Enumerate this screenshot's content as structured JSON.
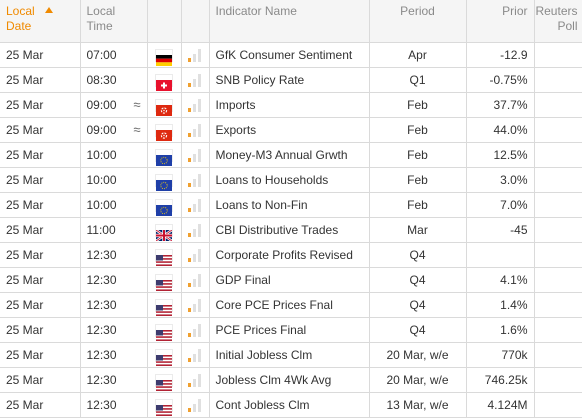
{
  "columns": {
    "date": [
      "Local",
      "Date"
    ],
    "time": [
      "Local",
      "Time"
    ],
    "name": "Indicator Name",
    "period": "Period",
    "prior": "Prior",
    "poll": [
      "Reuters",
      "Poll"
    ]
  },
  "colors": {
    "sort_accent": "#f08a00",
    "importance_on": "#f0a030",
    "importance_off": "#e0e0e0"
  },
  "rows": [
    {
      "date": "25 Mar",
      "time": "07:00",
      "tilde": "",
      "flag": "germany-flag",
      "importance": 1,
      "name": "GfK Consumer Sentiment",
      "period": "Apr",
      "prior": "-12.9",
      "poll": ""
    },
    {
      "date": "25 Mar",
      "time": "08:30",
      "tilde": "",
      "flag": "switzerland-flag",
      "importance": 1,
      "name": "SNB Policy Rate",
      "period": "Q1",
      "prior": "-0.75%",
      "poll": ""
    },
    {
      "date": "25 Mar",
      "time": "09:00",
      "tilde": "≈",
      "flag": "hong-kong-flag",
      "importance": 1,
      "name": "Imports",
      "period": "Feb",
      "prior": "37.7%",
      "poll": ""
    },
    {
      "date": "25 Mar",
      "time": "09:00",
      "tilde": "≈",
      "flag": "hong-kong-flag",
      "importance": 1,
      "name": "Exports",
      "period": "Feb",
      "prior": "44.0%",
      "poll": ""
    },
    {
      "date": "25 Mar",
      "time": "10:00",
      "tilde": "",
      "flag": "eu-flag",
      "importance": 1,
      "name": "Money-M3 Annual Grwth",
      "period": "Feb",
      "prior": "12.5%",
      "poll": ""
    },
    {
      "date": "25 Mar",
      "time": "10:00",
      "tilde": "",
      "flag": "eu-flag",
      "importance": 1,
      "name": "Loans to Households",
      "period": "Feb",
      "prior": "3.0%",
      "poll": ""
    },
    {
      "date": "25 Mar",
      "time": "10:00",
      "tilde": "",
      "flag": "eu-flag",
      "importance": 1,
      "name": "Loans to Non-Fin",
      "period": "Feb",
      "prior": "7.0%",
      "poll": ""
    },
    {
      "date": "25 Mar",
      "time": "11:00",
      "tilde": "",
      "flag": "uk-flag",
      "importance": 1,
      "name": "CBI Distributive Trades",
      "period": "Mar",
      "prior": "-45",
      "poll": ""
    },
    {
      "date": "25 Mar",
      "time": "12:30",
      "tilde": "",
      "flag": "us-flag",
      "importance": 1,
      "name": "Corporate Profits Revised",
      "period": "Q4",
      "prior": "",
      "poll": ""
    },
    {
      "date": "25 Mar",
      "time": "12:30",
      "tilde": "",
      "flag": "us-flag",
      "importance": 1,
      "name": "GDP Final",
      "period": "Q4",
      "prior": "4.1%",
      "poll": ""
    },
    {
      "date": "25 Mar",
      "time": "12:30",
      "tilde": "",
      "flag": "us-flag",
      "importance": 1,
      "name": "Core PCE Prices Fnal",
      "period": "Q4",
      "prior": "1.4%",
      "poll": ""
    },
    {
      "date": "25 Mar",
      "time": "12:30",
      "tilde": "",
      "flag": "us-flag",
      "importance": 1,
      "name": "PCE Prices Final",
      "period": "Q4",
      "prior": "1.6%",
      "poll": ""
    },
    {
      "date": "25 Mar",
      "time": "12:30",
      "tilde": "",
      "flag": "us-flag",
      "importance": 1,
      "name": "Initial Jobless Clm",
      "period": "20 Mar, w/e",
      "prior": "770k",
      "poll": ""
    },
    {
      "date": "25 Mar",
      "time": "12:30",
      "tilde": "",
      "flag": "us-flag",
      "importance": 1,
      "name": "Jobless Clm 4Wk Avg",
      "period": "20 Mar, w/e",
      "prior": "746.25k",
      "poll": ""
    },
    {
      "date": "25 Mar",
      "time": "12:30",
      "tilde": "",
      "flag": "us-flag",
      "importance": 1,
      "name": "Cont Jobless Clm",
      "period": "13 Mar, w/e",
      "prior": "4.124M",
      "poll": ""
    }
  ]
}
